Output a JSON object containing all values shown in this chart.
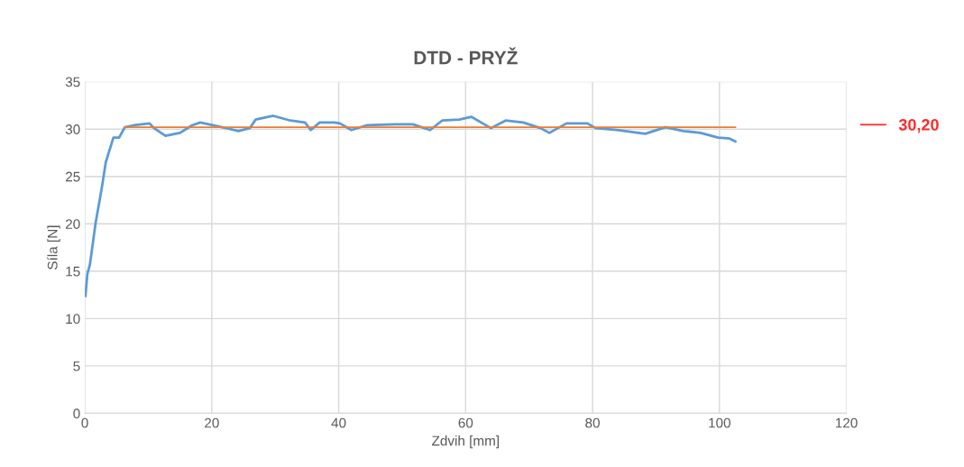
{
  "chart_data": {
    "type": "line",
    "title": "DTD - PRYŽ",
    "xlabel": "Zdvih [mm]",
    "ylabel": "Síla [N]",
    "xlim": [
      0,
      120
    ],
    "xticks": [
      0,
      20,
      40,
      60,
      80,
      100,
      120
    ],
    "ylim": [
      0,
      35
    ],
    "yticks": [
      0,
      5,
      10,
      15,
      20,
      25,
      30,
      35
    ],
    "grid": true,
    "legend": "right",
    "series": [
      {
        "color": "#5b9bd5",
        "x": [
          0.1,
          0.4,
          0.8,
          1.7,
          2.7,
          3.3,
          4.5,
          5.4,
          6.3,
          7.7,
          10.2,
          10.9,
          12.7,
          15,
          16.9,
          18.2,
          21,
          24.2,
          26,
          26.9,
          29.7,
          32.4,
          34.7,
          35.6,
          37,
          39.3,
          40.2,
          42,
          44.4,
          48.9,
          51.7,
          54.4,
          56.3,
          59,
          60.9,
          62.7,
          64,
          66.3,
          69.1,
          71.8,
          73.2,
          75.9,
          79.2,
          80.5,
          83.8,
          88.3,
          91.5,
          94.3,
          97,
          99.8,
          101.6,
          102.5
        ],
        "values": [
          12.4,
          14.7,
          15.7,
          20.1,
          23.9,
          26.5,
          29.1,
          29.1,
          30.2,
          30.4,
          30.6,
          30.1,
          29.3,
          29.6,
          30.4,
          30.7,
          30.3,
          29.8,
          30.1,
          31.0,
          31.4,
          30.9,
          30.7,
          29.9,
          30.7,
          30.7,
          30.6,
          29.9,
          30.4,
          30.5,
          30.5,
          29.9,
          30.9,
          31.0,
          31.3,
          30.6,
          30.1,
          30.9,
          30.7,
          30.1,
          29.6,
          30.6,
          30.6,
          30.1,
          29.9,
          29.5,
          30.2,
          29.8,
          29.6,
          29.1,
          29.0,
          28.7
        ]
      },
      {
        "name": "30,20",
        "color": "#ed7d31",
        "x": [
          6.3,
          102.5
        ],
        "values": [
          30.2,
          30.2
        ]
      }
    ]
  }
}
